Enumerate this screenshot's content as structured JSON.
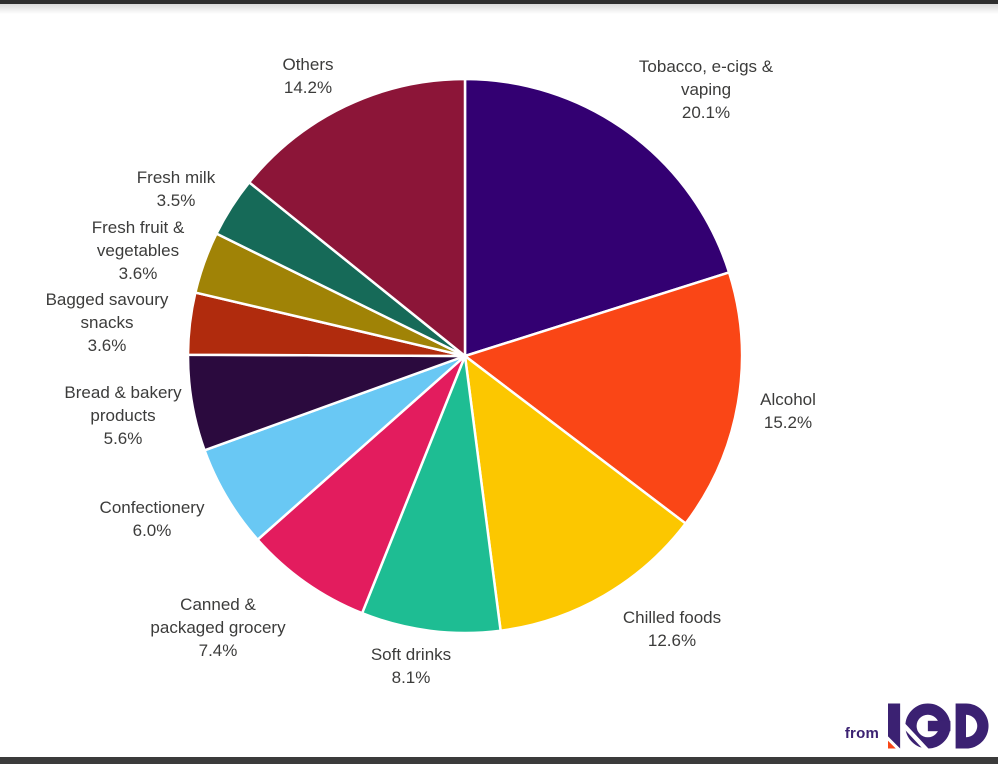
{
  "chart_data": {
    "type": "pie",
    "title": "",
    "unit": "%",
    "start_angle_deg": 0,
    "direction": "clockwise",
    "legend_position": "outside-labels",
    "slice_gap_color": "#FFFFFF",
    "text_color": "#3C3C3B",
    "slices": [
      {
        "label": "Tobacco, e-cigs & vaping",
        "value": 20.1,
        "pct_label": "20.1%",
        "display": "Tobacco, e-cigs &\nvaping",
        "color": "#330072"
      },
      {
        "label": "Alcohol",
        "value": 15.2,
        "pct_label": "15.2%",
        "display": "Alcohol",
        "color": "#FA4616"
      },
      {
        "label": "Chilled foods",
        "value": 12.6,
        "pct_label": "12.6%",
        "display": "Chilled foods",
        "color": "#FCC700"
      },
      {
        "label": "Soft drinks",
        "value": 8.1,
        "pct_label": "8.1%",
        "display": "Soft drinks",
        "color": "#1EBD93"
      },
      {
        "label": "Canned & packaged grocery",
        "value": 7.4,
        "pct_label": "7.4%",
        "display": "Canned &\npackaged grocery",
        "color": "#E31C5E"
      },
      {
        "label": "Confectionery",
        "value": 6.0,
        "pct_label": "6.0%",
        "display": "Confectionery",
        "color": "#69C8F4"
      },
      {
        "label": "Bread & bakery products",
        "value": 5.6,
        "pct_label": "5.6%",
        "display": "Bread & bakery\nproducts",
        "color": "#2B0A3E"
      },
      {
        "label": "Bagged savoury snacks",
        "value": 3.6,
        "pct_label": "3.6%",
        "display": "Bagged savoury\nsnacks",
        "color": "#B02B0D"
      },
      {
        "label": "Fresh fruit & vegetables",
        "value": 3.6,
        "pct_label": "3.6%",
        "display": "Fresh fruit &\nvegetables",
        "color": "#A08306"
      },
      {
        "label": "Fresh milk",
        "value": 3.5,
        "pct_label": "3.5%",
        "display": "Fresh milk",
        "color": "#166A58"
      },
      {
        "label": "Others",
        "value": 14.2,
        "pct_label": "14.2%",
        "display": "Others",
        "color": "#8C1538"
      }
    ]
  },
  "branding": {
    "prefix": "from",
    "name": "IGD",
    "color": "#3B2172",
    "accent": "#F94616"
  }
}
